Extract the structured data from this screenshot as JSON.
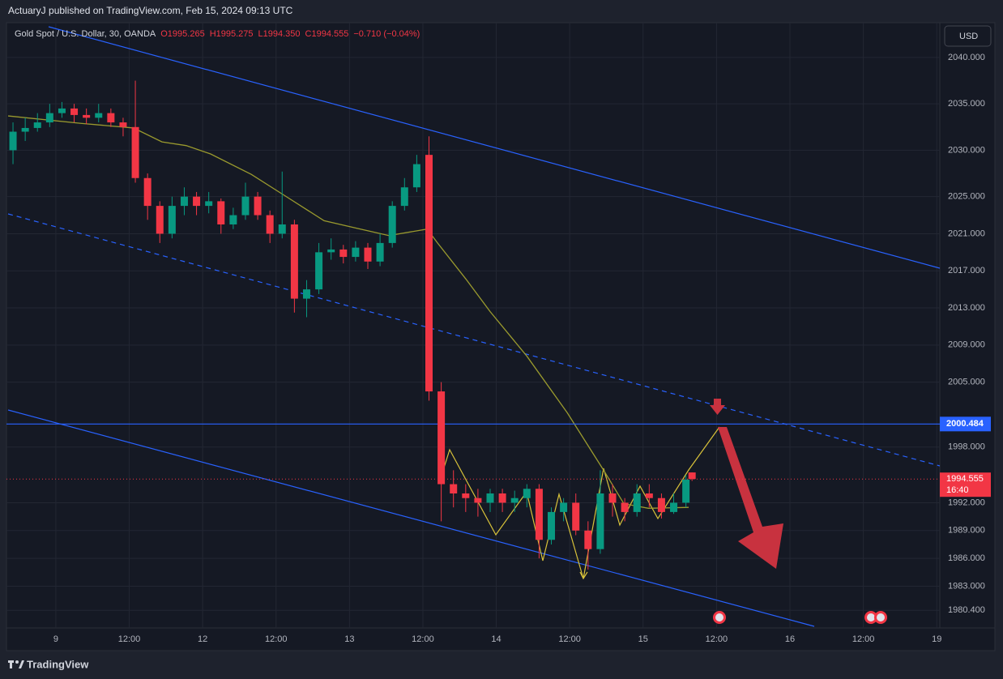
{
  "published": "ActuaryJ published on TradingView.com, Feb 15, 2024 09:13 UTC",
  "brand": "TradingView",
  "currency": "USD",
  "chart_data": {
    "type": "candlestick",
    "title": "Gold Spot / U.S. Dollar, 30, OANDA",
    "header_ohlc": [
      "O1995.265",
      "H1995.275",
      "L1994.350",
      "C1994.555"
    ],
    "change": "−0.710 (−0.04%)",
    "countdown": "16:40",
    "up_color": "#089981",
    "down_color": "#f23645",
    "x": [
      -14,
      -10,
      -6,
      -2,
      2,
      6,
      10,
      14,
      18,
      22,
      26,
      30,
      34,
      38,
      42,
      46,
      50,
      54,
      58,
      62,
      66,
      70,
      74,
      78,
      82,
      86,
      90,
      94,
      98,
      102,
      106,
      110,
      114,
      118,
      122,
      126,
      130,
      134,
      138,
      142,
      146,
      150,
      154,
      158,
      162,
      166,
      170,
      174,
      178,
      182,
      186,
      190,
      194,
      198,
      202,
      206,
      208
    ],
    "open": [
      2030,
      2032,
      2032.4,
      2033,
      2034,
      2034.5,
      2033.8,
      2033.5,
      2034,
      2033,
      2032.5,
      2027,
      2024,
      2021,
      2024,
      2025,
      2024,
      2024.5,
      2022,
      2023,
      2025,
      2023,
      2021,
      2022,
      2014,
      2015,
      2019,
      2019.3,
      2018.5,
      2019.5,
      2018,
      2020,
      2024,
      2026,
      2029.5,
      2004,
      1994,
      1993,
      1992.5,
      1992,
      1993,
      1992,
      1992.5,
      1993.5,
      1988,
      1991,
      1992,
      1989,
      1987,
      1993,
      1992,
      1991,
      1993,
      1992.5,
      1991,
      1992,
      1995.265
    ],
    "high": [
      2033,
      2033.5,
      2034,
      2035,
      2035.2,
      2035,
      2034.5,
      2035,
      2034.5,
      2033.5,
      2037.5,
      2027.5,
      2024.5,
      2025,
      2026,
      2025.5,
      2025.5,
      2024.8,
      2023.8,
      2026.5,
      2025.5,
      2023.5,
      2027.7,
      2022.5,
      2016,
      2020,
      2020.5,
      2019.8,
      2020.2,
      2020,
      2021,
      2024.5,
      2027,
      2029.5,
      2031.5,
      2005,
      1995.5,
      1994,
      1993.5,
      1993.5,
      1993.5,
      1993.3,
      1994,
      1994,
      1991.5,
      1992.5,
      1993,
      1990,
      1995.5,
      1994,
      1992.5,
      1994,
      1994,
      1993,
      1993,
      1995,
      1995.275
    ],
    "low": [
      2028.5,
      2031,
      2032,
      2032.5,
      2033.5,
      2033,
      2032.8,
      2033,
      2032.5,
      2031.5,
      2026.5,
      2022.5,
      2020,
      2020.5,
      2023,
      2023,
      2023.2,
      2021,
      2021.5,
      2022.5,
      2022.5,
      2020,
      2020.5,
      2012.5,
      2012,
      2014.5,
      2018.2,
      2017.8,
      2018,
      2017.2,
      2017.5,
      2019.5,
      2023.5,
      2025.5,
      2003,
      1990,
      1991.5,
      1991,
      1990.5,
      1991,
      1991,
      1991,
      1991.5,
      1986,
      1987.5,
      1990,
      1988.5,
      1984.8,
      1986.5,
      1990.5,
      1990,
      1990.5,
      1991.5,
      1990.3,
      1990.8,
      1991.5,
      1994.35
    ],
    "close": [
      2032,
      2032.4,
      2033,
      2034,
      2034.5,
      2033.8,
      2033.5,
      2034,
      2033,
      2032.5,
      2027,
      2024,
      2021,
      2024,
      2025,
      2024,
      2024.5,
      2022,
      2023,
      2025,
      2023,
      2021,
      2022,
      2014,
      2015,
      2019,
      2019.3,
      2018.5,
      2019.5,
      2018,
      2020,
      2024,
      2026,
      2028.5,
      2004,
      1994,
      1993,
      1992.5,
      1992,
      1993,
      1992,
      1992.5,
      1993.5,
      1988,
      1991,
      1992,
      1989,
      1987,
      1993,
      1992,
      1991,
      1993,
      1992.5,
      1991,
      1992,
      1994.5,
      1994.555
    ],
    "ma": {
      "color": "#9a9a2e",
      "x": [
        -15.6,
        8.2,
        25.4,
        34.7,
        42.6,
        50.6,
        63.9,
        74.4,
        87.7,
        98.3,
        108.9,
        121.4,
        124.8,
        134.1,
        142,
        154,
        167.2,
        179.1,
        185.7,
        193.7,
        206.9
      ],
      "values": [
        2033.7,
        2032.9,
        2032.4,
        2030.9,
        2030.5,
        2029.6,
        2027.4,
        2025.2,
        2022.4,
        2021.6,
        2020.8,
        2021.5,
        2020.0,
        2016.1,
        2012.6,
        2007.8,
        2001.7,
        1995.5,
        1991.9,
        1991.4,
        1991.5
      ]
    },
    "hline": {
      "value": 2000.484,
      "label": "2000.484",
      "color": "#2962ff"
    },
    "xlim": [
      -15.6,
      289
    ],
    "ylim": [
      1978.5,
      2043.75
    ],
    "xticks": [
      {
        "value": 0,
        "label": "9"
      },
      {
        "value": 24,
        "label": "12:00"
      },
      {
        "value": 48,
        "label": "12"
      },
      {
        "value": 72,
        "label": "12:00"
      },
      {
        "value": 96,
        "label": "13"
      },
      {
        "value": 120,
        "label": "12:00"
      },
      {
        "value": 144,
        "label": "14"
      },
      {
        "value": 168,
        "label": "12:00"
      },
      {
        "value": 192,
        "label": "15"
      },
      {
        "value": 216,
        "label": "12:00"
      },
      {
        "value": 240,
        "label": "16"
      },
      {
        "value": 264,
        "label": "12:00"
      },
      {
        "value": 288,
        "label": "19"
      }
    ],
    "yticks": [
      {
        "value": 2040,
        "label": "2040.000"
      },
      {
        "value": 2035,
        "label": "2035.000"
      },
      {
        "value": 2030,
        "label": "2030.000"
      },
      {
        "value": 2025,
        "label": "2025.000"
      },
      {
        "value": 2021,
        "label": "2021.000"
      },
      {
        "value": 2017,
        "label": "2017.000"
      },
      {
        "value": 2013,
        "label": "2013.000"
      },
      {
        "value": 2009,
        "label": "2009.000"
      },
      {
        "value": 2005,
        "label": "2005.000"
      },
      {
        "value": 1998,
        "label": "1998.000"
      },
      {
        "value": 1992,
        "label": "1992.000"
      },
      {
        "value": 1989,
        "label": "1989.000"
      },
      {
        "value": 1986,
        "label": "1986.000"
      },
      {
        "value": 1983,
        "label": "1983.000"
      },
      {
        "value": 1980.4,
        "label": "1980.400"
      }
    ],
    "grid": true
  }
}
